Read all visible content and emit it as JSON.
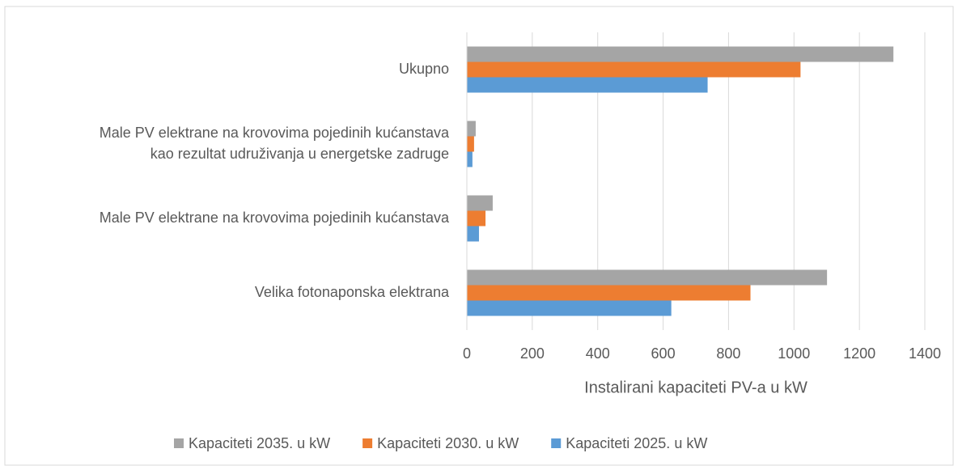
{
  "chart_data": {
    "type": "barh",
    "xlabel": "Instalirani kapaciteti PV-a u kW",
    "categories": [
      "Velika fotonaponska elektrana",
      "Male PV elektrane na krovovima pojedinih kućanstava",
      "Male PV elektrane na krovovima pojedinih kućanstava\nkao rezultat udruživanja u energetske zadruge",
      "Ukupno"
    ],
    "series": [
      {
        "name": "Kapaciteti 2035. u kW",
        "color": "#a5a5a5",
        "values": [
          1101,
          79,
          27,
          1304
        ]
      },
      {
        "name": "Kapaciteti 2030. u kW",
        "color": "#ed7d31",
        "values": [
          867,
          57,
          22,
          1020
        ]
      },
      {
        "name": "Kapaciteti 2025. u kW",
        "color": "#5b9bd5",
        "values": [
          625,
          37,
          17,
          736
        ]
      }
    ],
    "xlim": [
      0,
      1400
    ],
    "xticks": [
      0,
      200,
      400,
      600,
      800,
      1000,
      1200,
      1400
    ],
    "grid": true,
    "legend": "bottom"
  }
}
